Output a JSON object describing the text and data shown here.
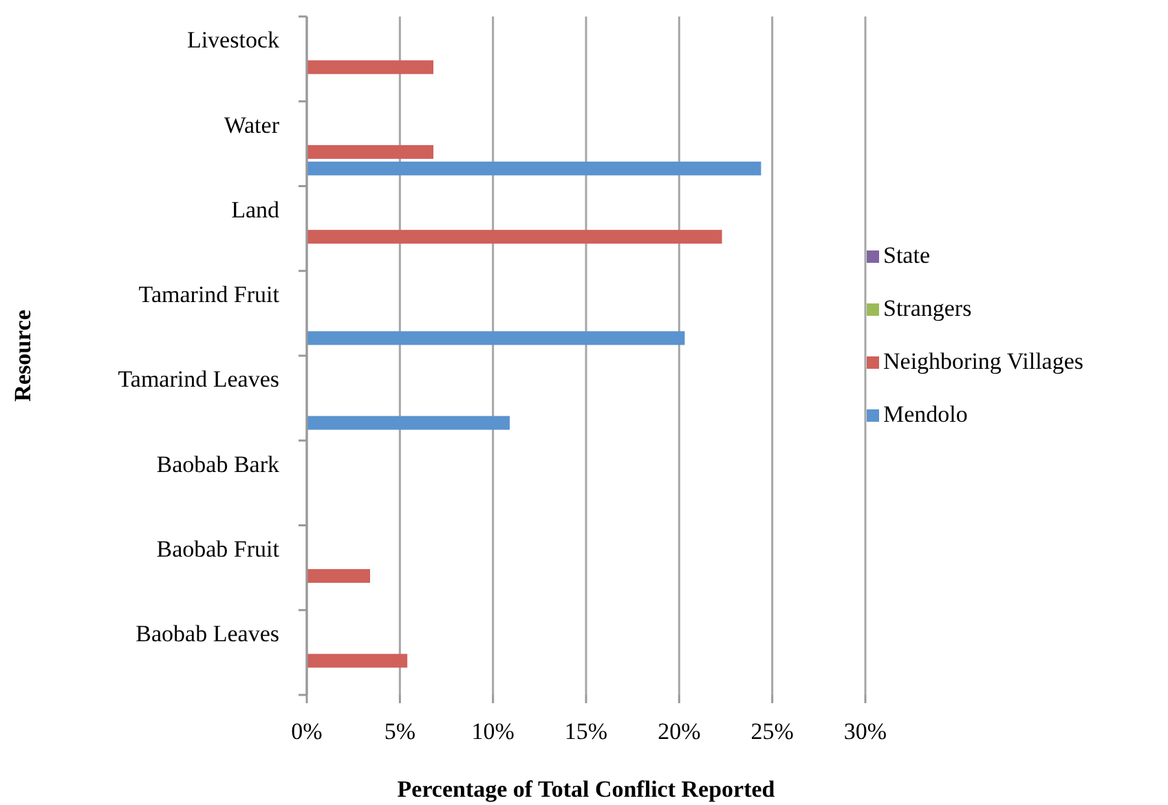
{
  "chart_data": {
    "type": "bar",
    "orientation": "horizontal",
    "xlabel": "Percentage of Total Conflict Reported",
    "ylabel": "Resource",
    "categories": [
      "Livestock",
      "Water",
      "Land",
      "Tamarind Fruit",
      "Tamarind Leaves",
      "Baobab Bark",
      "Baobab Fruit",
      "Baobab Leaves"
    ],
    "series": [
      {
        "name": "State",
        "color": "#8064a2",
        "values": [
          0,
          0,
          0,
          0,
          0,
          0,
          0,
          0
        ]
      },
      {
        "name": "Strangers",
        "color": "#9bbb59",
        "values": [
          0,
          0,
          0,
          0,
          0,
          0,
          0,
          0
        ]
      },
      {
        "name": "Neighboring Villages",
        "color": "#d0605a",
        "values": [
          6.8,
          6.8,
          22.3,
          0,
          0,
          0,
          3.4,
          5.4
        ]
      },
      {
        "name": "Mendolo",
        "color": "#5b93cf",
        "values": [
          0,
          24.4,
          0,
          20.3,
          10.9,
          0,
          0,
          0
        ]
      }
    ],
    "xlim": [
      0,
      30
    ],
    "xticks": [
      {
        "value": 0,
        "label": "0%"
      },
      {
        "value": 5,
        "label": "5%"
      },
      {
        "value": 10,
        "label": "10%"
      },
      {
        "value": 15,
        "label": "15%"
      },
      {
        "value": 20,
        "label": "20%"
      },
      {
        "value": 25,
        "label": "25%"
      },
      {
        "value": 30,
        "label": "30%"
      }
    ],
    "grid": "x",
    "legend": "right"
  }
}
